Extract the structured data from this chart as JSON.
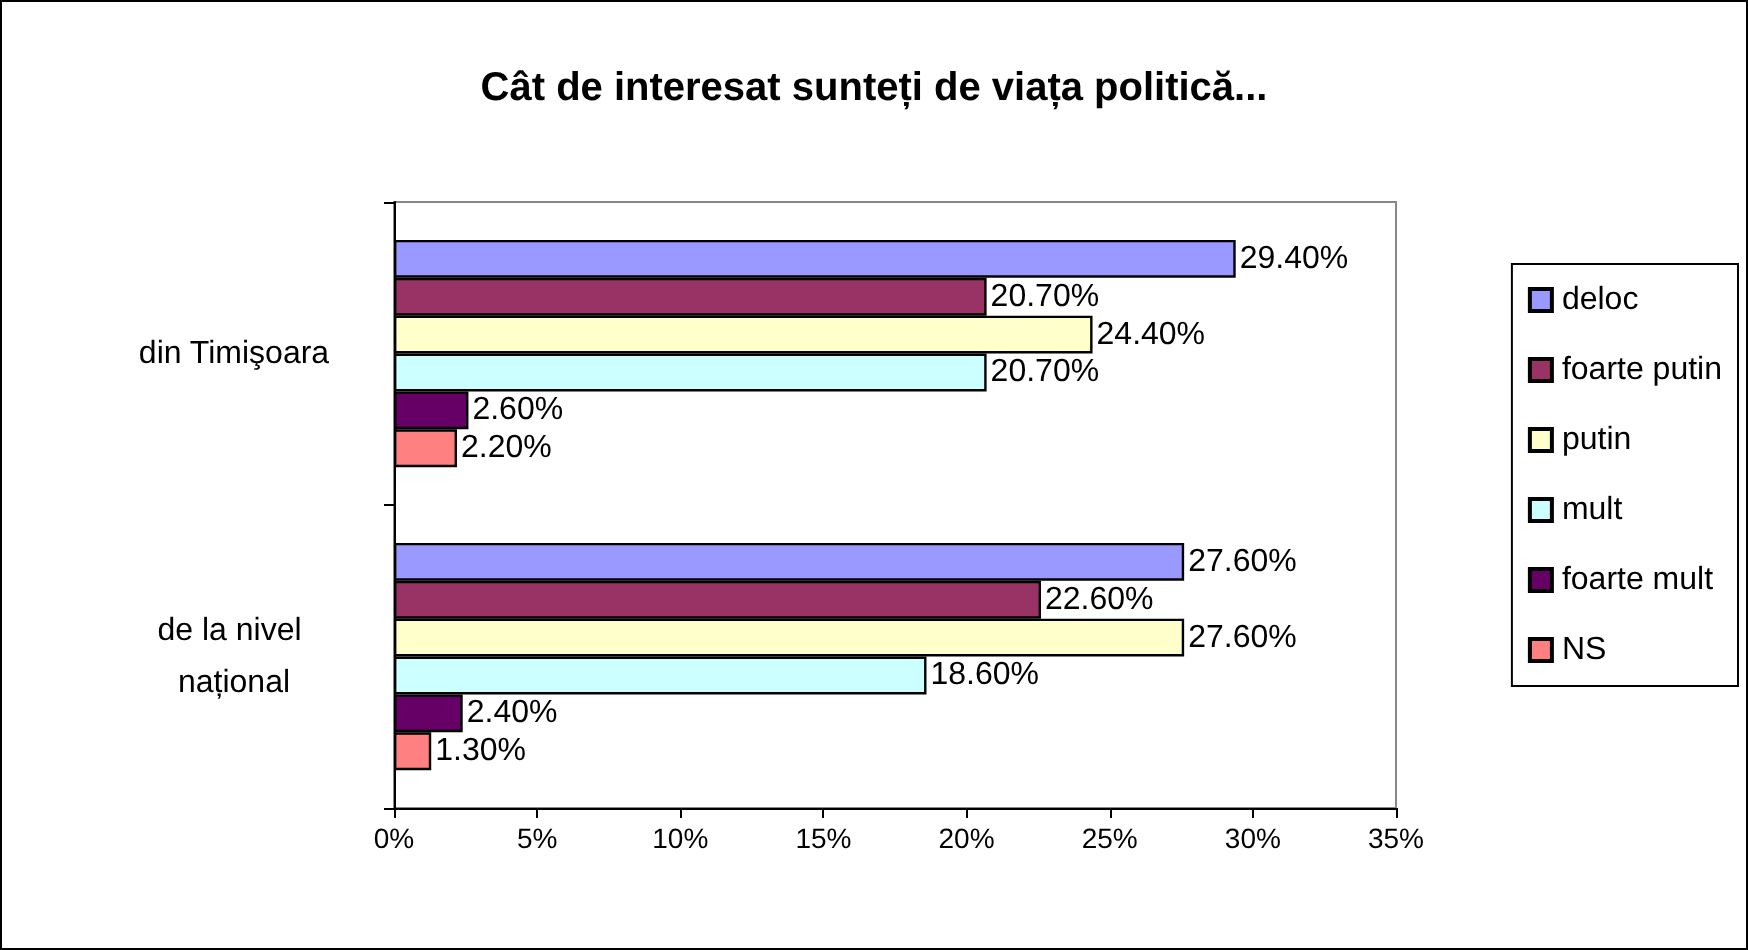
{
  "chart_data": {
    "type": "bar",
    "orientation": "horizontal",
    "title": "Cât de interesat sunteți de viața politică...",
    "categories": [
      "din Timişoara",
      "de la nivel național"
    ],
    "series": [
      {
        "name": "deloc",
        "color": "#9999ff",
        "values": [
          29.4,
          27.6
        ],
        "value_labels": [
          "29.40%",
          "27.60%"
        ]
      },
      {
        "name": "foarte putin",
        "color": "#993366",
        "values": [
          20.7,
          22.6
        ],
        "value_labels": [
          "20.70%",
          "22.60%"
        ]
      },
      {
        "name": "putin",
        "color": "#ffffcc",
        "values": [
          24.4,
          27.6
        ],
        "value_labels": [
          "24.40%",
          "27.60%"
        ]
      },
      {
        "name": "mult",
        "color": "#ccffff",
        "values": [
          20.7,
          18.6
        ],
        "value_labels": [
          "20.70%",
          "18.60%"
        ]
      },
      {
        "name": "foarte mult",
        "color": "#660066",
        "values": [
          2.6,
          2.4
        ],
        "value_labels": [
          "2.60%",
          "2.40%"
        ]
      },
      {
        "name": "NS",
        "color": "#ff8080",
        "values": [
          2.2,
          1.3
        ],
        "value_labels": [
          "2.20%",
          "1.30%"
        ]
      }
    ],
    "xlim": [
      0,
      35
    ],
    "xticks": [
      {
        "value": 0,
        "label": "0%"
      },
      {
        "value": 5,
        "label": "5%"
      },
      {
        "value": 10,
        "label": "10%"
      },
      {
        "value": 15,
        "label": "15%"
      },
      {
        "value": 20,
        "label": "20%"
      },
      {
        "value": 25,
        "label": "25%"
      },
      {
        "value": 30,
        "label": "30%"
      },
      {
        "value": 35,
        "label": "35%"
      }
    ],
    "grid": false,
    "legend": "right"
  }
}
